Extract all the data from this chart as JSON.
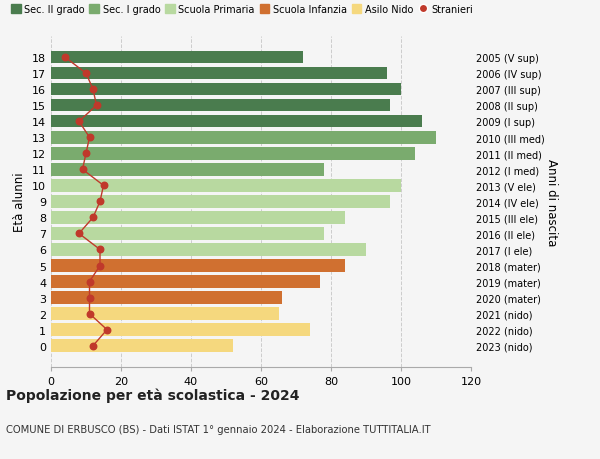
{
  "ages": [
    18,
    17,
    16,
    15,
    14,
    13,
    12,
    11,
    10,
    9,
    8,
    7,
    6,
    5,
    4,
    3,
    2,
    1,
    0
  ],
  "bar_values": [
    72,
    96,
    100,
    97,
    106,
    110,
    104,
    78,
    100,
    97,
    84,
    78,
    90,
    84,
    77,
    66,
    65,
    74,
    52
  ],
  "right_labels": [
    "2005 (V sup)",
    "2006 (IV sup)",
    "2007 (III sup)",
    "2008 (II sup)",
    "2009 (I sup)",
    "2010 (III med)",
    "2011 (II med)",
    "2012 (I med)",
    "2013 (V ele)",
    "2014 (IV ele)",
    "2015 (III ele)",
    "2016 (II ele)",
    "2017 (I ele)",
    "2018 (mater)",
    "2019 (mater)",
    "2020 (mater)",
    "2021 (nido)",
    "2022 (nido)",
    "2023 (nido)"
  ],
  "bar_colors": [
    "#4a7c4e",
    "#4a7c4e",
    "#4a7c4e",
    "#4a7c4e",
    "#4a7c4e",
    "#7aab6e",
    "#7aab6e",
    "#7aab6e",
    "#b8d9a0",
    "#b8d9a0",
    "#b8d9a0",
    "#b8d9a0",
    "#b8d9a0",
    "#d07030",
    "#d07030",
    "#d07030",
    "#f5d87e",
    "#f5d87e",
    "#f5d87e"
  ],
  "stranieri_values": [
    4,
    10,
    12,
    13,
    8,
    11,
    10,
    9,
    15,
    14,
    12,
    8,
    14,
    14,
    11,
    11,
    11,
    16,
    12
  ],
  "legend_labels": [
    "Sec. II grado",
    "Sec. I grado",
    "Scuola Primaria",
    "Scuola Infanzia",
    "Asilo Nido",
    "Stranieri"
  ],
  "legend_colors": [
    "#4a7c4e",
    "#7aab6e",
    "#b8d9a0",
    "#d07030",
    "#f5d87e",
    "#c0392b"
  ],
  "title": "Popolazione per età scolastica - 2024",
  "subtitle": "COMUNE DI ERBUSCO (BS) - Dati ISTAT 1° gennaio 2024 - Elaborazione TUTTITALIA.IT",
  "ylabel_left": "Età alunni",
  "ylabel_right": "Anni di nascita",
  "xlim": [
    0,
    120
  ],
  "xticks": [
    0,
    20,
    40,
    60,
    80,
    100,
    120
  ],
  "background_color": "#f5f5f5",
  "grid_color": "#cccccc",
  "bar_height": 0.78
}
